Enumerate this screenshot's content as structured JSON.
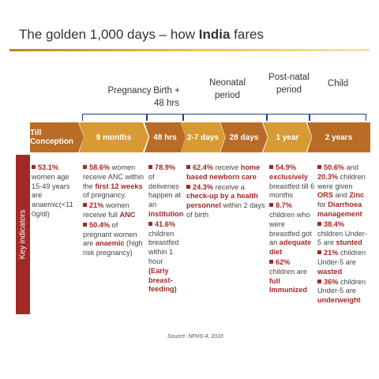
{
  "title": {
    "prefix": "The golden 1,000 days – how ",
    "emph": "India",
    "suffix": " fares"
  },
  "phases": {
    "pregnancy": "Pregnancy",
    "birth": "Birth + 48 hrs",
    "neonatal": "Neonatal period",
    "postnatal": "Post-natal period",
    "child": "Child"
  },
  "timeline": [
    "Till Conception",
    "9 months",
    "48 hrs",
    "2-7 days",
    "28 days",
    "1 year",
    "2 years"
  ],
  "sidebar_label": "Key indicators",
  "columns": {
    "conception": {
      "p1": {
        "v": "53.1%",
        "t": "women age 15-49 years are anaemic(<11 0g/dl)"
      }
    },
    "pregnancy": {
      "p1": {
        "v": "58.6%",
        "a": " women receive ANC within the ",
        "h": "first 12 weeks",
        "b": " of pregnancy."
      },
      "p2": {
        "v": "21%",
        "a": " women receive full ",
        "h": "ANC"
      },
      "p3": {
        "v": "50.4%",
        "a": " of pregnant women are ",
        "h": "anaemic",
        "b": " (high risk pregnancy)"
      }
    },
    "birth": {
      "p1": {
        "v": "78.9%",
        "a": " of deliveries happen at an ",
        "h": "institution"
      },
      "p2": {
        "v": "41.6%",
        "a": " children breastfed within 1 hour ",
        "h": "(Early breast-feeding)"
      }
    },
    "neonatal": {
      "p1": {
        "v": "62.4%",
        "a": " receive ",
        "h": "home based newborn care"
      },
      "p2": {
        "v": "24.3%",
        "a": " receive a ",
        "h": "check-up by a health personnel",
        "b": " within 2 days of birth"
      }
    },
    "year1": {
      "p1": {
        "v": "54.9%",
        "h": "exclusively",
        "b": " breastfed till 6 months"
      },
      "p2": {
        "v": "8.7%",
        "a": " children who were breastfed got an ",
        "h": "adequate diet"
      },
      "p3": {
        "v": "62%",
        "a": " children are ",
        "h": "full Immunized"
      }
    },
    "year2": {
      "p1": {
        "v": "50.6%",
        "a": " and ",
        "v2": "20.3%",
        "a2": " children were given ",
        "h": "ORS",
        "a3": " and ",
        "h2": "Zinc",
        "a4": " for ",
        "h3": "Diarrhoea management"
      },
      "p2": {
        "v": "38.4%",
        "a": " children Under-5 are ",
        "h": "stunted"
      },
      "p3": {
        "v": "21%",
        "a": " children Under-5 are ",
        "h": "wasted"
      },
      "p4": {
        "v": "36%",
        "a": " children Under-5 are ",
        "h": "underweight"
      }
    }
  },
  "source": "Source: NFHS-4, 2016",
  "colors": {
    "accent_red": "#a32926",
    "arrow_brown": "#b86c27",
    "arrow_gold": "#d79a34",
    "bracket_blue": "#1c3f94"
  }
}
